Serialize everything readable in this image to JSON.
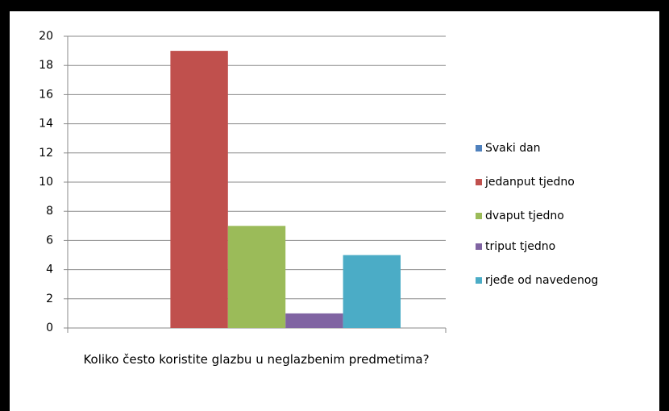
{
  "chart_data": {
    "type": "bar",
    "categories": [
      "Koliko često koristite glazbu u neglazbenim predmetima?"
    ],
    "series": [
      {
        "name": "Svaki dan",
        "color": "#4f81bd",
        "values": [
          0
        ]
      },
      {
        "name": "jedanput tjedno",
        "color": "#c0504d",
        "values": [
          19
        ]
      },
      {
        "name": "dvaput tjedno",
        "color": "#9bbb59",
        "values": [
          7
        ]
      },
      {
        "name": "triput tjedno",
        "color": "#8064a2",
        "values": [
          1
        ]
      },
      {
        "name": "rjeđe od navedenog",
        "color": "#4bacc6",
        "values": [
          5
        ]
      }
    ],
    "ylim": [
      0,
      20
    ],
    "yticks": [
      0,
      2,
      4,
      6,
      8,
      10,
      12,
      14,
      16,
      18,
      20
    ],
    "grid": true,
    "legend": "right"
  }
}
